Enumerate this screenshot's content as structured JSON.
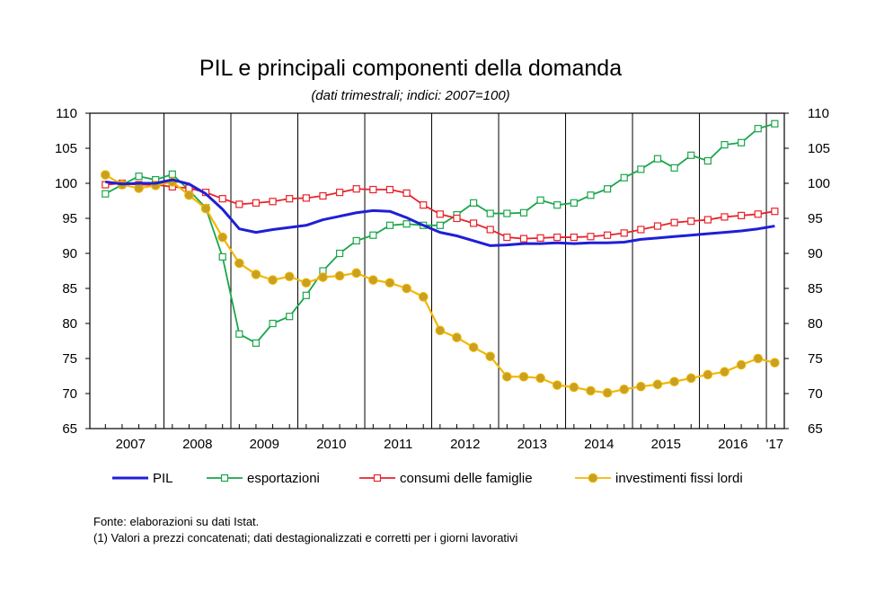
{
  "title": "PIL e principali componenti della domanda",
  "subtitle": "(dati trimestrali; indici: 2007=100)",
  "source": "Fonte: elaborazioni su dati Istat.",
  "note": "(1) Valori a prezzi concatenati; dati destagionalizzati e corretti per i giorni lavorativi",
  "colors": {
    "pil": "#1f1fd6",
    "esportazioni": "#1aa64a",
    "consumi": "#e8232a",
    "investimenti": "#f2b705",
    "investimenti_marker": "#c9a020"
  },
  "chart_data": {
    "type": "line",
    "title": "PIL e principali componenti della domanda",
    "subtitle": "(dati trimestrali; indici: 2007=100)",
    "ylim": [
      65,
      110
    ],
    "y_ticks": [
      65,
      70,
      75,
      80,
      85,
      90,
      95,
      100,
      105,
      110
    ],
    "x_labels": [
      "2007",
      "2008",
      "2009",
      "2010",
      "2011",
      "2012",
      "2013",
      "2014",
      "2015",
      "2016",
      "'17"
    ],
    "x": [
      "2007Q1",
      "2007Q2",
      "2007Q3",
      "2007Q4",
      "2008Q1",
      "2008Q2",
      "2008Q3",
      "2008Q4",
      "2009Q1",
      "2009Q2",
      "2009Q3",
      "2009Q4",
      "2010Q1",
      "2010Q2",
      "2010Q3",
      "2010Q4",
      "2011Q1",
      "2011Q2",
      "2011Q3",
      "2011Q4",
      "2012Q1",
      "2012Q2",
      "2012Q3",
      "2012Q4",
      "2013Q1",
      "2013Q2",
      "2013Q3",
      "2013Q4",
      "2014Q1",
      "2014Q2",
      "2014Q3",
      "2014Q4",
      "2015Q1",
      "2015Q2",
      "2015Q3",
      "2015Q4",
      "2016Q1",
      "2016Q2",
      "2016Q3",
      "2016Q4",
      "2017Q1"
    ],
    "grid": "vertical lines at year boundaries",
    "legend_position": "bottom",
    "series": [
      {
        "name": "PIL",
        "key": "pil",
        "marker": "none",
        "values": [
          100.2,
          99.9,
          100.0,
          100.0,
          100.5,
          99.9,
          98.5,
          96.3,
          93.5,
          93.0,
          93.4,
          93.7,
          94.0,
          94.8,
          95.3,
          95.8,
          96.1,
          96.0,
          95.1,
          94.0,
          93.0,
          92.5,
          91.8,
          91.1,
          91.2,
          91.4,
          91.4,
          91.5,
          91.4,
          91.5,
          91.5,
          91.6,
          92.0,
          92.2,
          92.4,
          92.6,
          92.8,
          93.0,
          93.2,
          93.5,
          93.9
        ]
      },
      {
        "name": "esportazioni",
        "key": "esportazioni",
        "marker": "square",
        "values": [
          98.5,
          99.8,
          101.0,
          100.5,
          101.3,
          99.0,
          96.5,
          89.5,
          78.5,
          77.2,
          80.0,
          81.0,
          84.0,
          87.5,
          90.0,
          91.8,
          92.6,
          94.0,
          94.2,
          94.0,
          94.0,
          95.5,
          97.2,
          95.7,
          95.7,
          95.8,
          97.6,
          96.9,
          97.2,
          98.3,
          99.2,
          100.8,
          102.0,
          103.5,
          102.2,
          104.0,
          103.2,
          105.5,
          105.8,
          107.8,
          108.5
        ]
      },
      {
        "name": "consumi delle famiglie",
        "key": "consumi",
        "marker": "square",
        "values": [
          99.8,
          100.0,
          99.8,
          99.8,
          99.5,
          99.3,
          98.7,
          97.8,
          97.0,
          97.2,
          97.4,
          97.8,
          97.9,
          98.2,
          98.7,
          99.2,
          99.1,
          99.1,
          98.6,
          96.9,
          95.6,
          95.0,
          94.3,
          93.4,
          92.3,
          92.1,
          92.2,
          92.3,
          92.3,
          92.4,
          92.6,
          92.9,
          93.4,
          93.9,
          94.4,
          94.6,
          94.8,
          95.2,
          95.4,
          95.6,
          96.0
        ]
      },
      {
        "name": "investimenti fissi lordi",
        "key": "investimenti",
        "marker": "circle",
        "values": [
          101.2,
          99.8,
          99.3,
          99.7,
          100.2,
          98.3,
          96.4,
          92.3,
          88.6,
          87.0,
          86.2,
          86.7,
          85.8,
          86.6,
          86.8,
          87.2,
          86.2,
          85.8,
          85.0,
          83.8,
          79.0,
          78.0,
          76.6,
          75.3,
          72.4,
          72.4,
          72.2,
          71.2,
          70.9,
          70.4,
          70.1,
          70.6,
          71.0,
          71.3,
          71.7,
          72.2,
          72.7,
          73.1,
          74.1,
          75.0,
          74.4
        ]
      }
    ]
  }
}
